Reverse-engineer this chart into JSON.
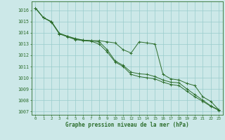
{
  "title": "Graphe pression niveau de la mer (hPa)",
  "bg_color": "#cce8e8",
  "grid_color": "#99cccc",
  "line_color": "#2d6e2d",
  "xlim": [
    -0.5,
    23.5
  ],
  "ylim": [
    1006.7,
    1016.8
  ],
  "xticks": [
    0,
    1,
    2,
    3,
    4,
    5,
    6,
    7,
    8,
    9,
    10,
    11,
    12,
    13,
    14,
    15,
    16,
    17,
    18,
    19,
    20,
    21,
    22,
    23
  ],
  "yticks": [
    1007,
    1008,
    1009,
    1010,
    1011,
    1012,
    1013,
    1014,
    1015,
    1016
  ],
  "series1": [
    1016.2,
    1015.35,
    1015.0,
    1013.95,
    1013.7,
    1013.45,
    1013.35,
    1013.3,
    1013.3,
    1013.2,
    1013.1,
    1012.5,
    1012.2,
    1013.2,
    1013.1,
    1013.0,
    1010.3,
    1009.9,
    1009.8,
    1009.5,
    1009.3,
    1008.3,
    1007.9,
    1007.15
  ],
  "series2": [
    1016.2,
    1015.35,
    1015.0,
    1013.95,
    1013.7,
    1013.5,
    1013.35,
    1013.3,
    1013.2,
    1012.5,
    1011.5,
    1011.1,
    1010.5,
    1010.35,
    1010.3,
    1010.1,
    1009.8,
    1009.6,
    1009.55,
    1009.0,
    1008.5,
    1008.0,
    1007.5,
    1007.15
  ],
  "series3": [
    1016.2,
    1015.35,
    1014.95,
    1013.9,
    1013.65,
    1013.4,
    1013.3,
    1013.25,
    1013.0,
    1012.3,
    1011.4,
    1011.0,
    1010.3,
    1010.1,
    1010.0,
    1009.9,
    1009.6,
    1009.4,
    1009.3,
    1008.8,
    1008.3,
    1007.9,
    1007.45,
    1007.1
  ]
}
